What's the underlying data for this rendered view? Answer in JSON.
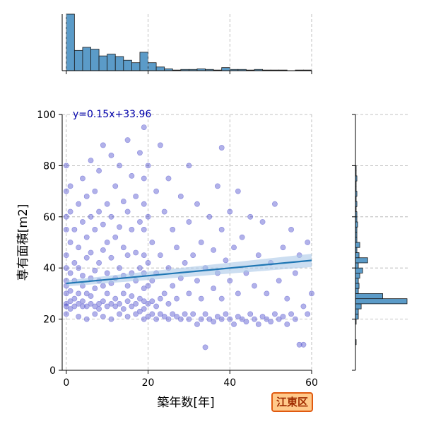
{
  "chart_data": {
    "type": "scatter",
    "title": "",
    "xlabel": "築年数[年]",
    "ylabel": "専有面積[m2]",
    "xlim": [
      -1,
      60
    ],
    "ylim": [
      0,
      100
    ],
    "x_ticks": [
      0,
      20,
      40,
      60
    ],
    "y_ticks": [
      0,
      20,
      40,
      60,
      80,
      100
    ],
    "grid": true,
    "regression": {
      "slope": 0.15,
      "intercept": 33.96,
      "label": "y=0.15x+33.96"
    },
    "points_note": "dense cloud of listings, heavy at x 0-20 and y 20-40",
    "points": [
      [
        0,
        25
      ],
      [
        0,
        22
      ],
      [
        0,
        30
      ],
      [
        0,
        35
      ],
      [
        0,
        40
      ],
      [
        0,
        45
      ],
      [
        0,
        55
      ],
      [
        0,
        60
      ],
      [
        0,
        70
      ],
      [
        0,
        80
      ],
      [
        0,
        26
      ],
      [
        0,
        33
      ],
      [
        1,
        24
      ],
      [
        1,
        27
      ],
      [
        1,
        31
      ],
      [
        1,
        38
      ],
      [
        1,
        50
      ],
      [
        1,
        62
      ],
      [
        1,
        72
      ],
      [
        2,
        25
      ],
      [
        2,
        28
      ],
      [
        2,
        35
      ],
      [
        2,
        42
      ],
      [
        2,
        55
      ],
      [
        3,
        21
      ],
      [
        3,
        26
      ],
      [
        3,
        30
      ],
      [
        3,
        40
      ],
      [
        3,
        48
      ],
      [
        3,
        65
      ],
      [
        4,
        25
      ],
      [
        4,
        27
      ],
      [
        4,
        33
      ],
      [
        4,
        37
      ],
      [
        4,
        58
      ],
      [
        4,
        75
      ],
      [
        5,
        20
      ],
      [
        5,
        25
      ],
      [
        5,
        30
      ],
      [
        5,
        44
      ],
      [
        5,
        52
      ],
      [
        5,
        68
      ],
      [
        6,
        26
      ],
      [
        6,
        29
      ],
      [
        6,
        36
      ],
      [
        6,
        46
      ],
      [
        6,
        60
      ],
      [
        6,
        82
      ],
      [
        7,
        22
      ],
      [
        7,
        25
      ],
      [
        7,
        32
      ],
      [
        7,
        39
      ],
      [
        7,
        55
      ],
      [
        7,
        70
      ],
      [
        8,
        24
      ],
      [
        8,
        26
      ],
      [
        8,
        35
      ],
      [
        8,
        42
      ],
      [
        8,
        62
      ],
      [
        8,
        78
      ],
      [
        9,
        21
      ],
      [
        9,
        27
      ],
      [
        9,
        33
      ],
      [
        9,
        47
      ],
      [
        9,
        57
      ],
      [
        9,
        88
      ],
      [
        10,
        25
      ],
      [
        10,
        30
      ],
      [
        10,
        38
      ],
      [
        10,
        50
      ],
      [
        10,
        65
      ],
      [
        11,
        20
      ],
      [
        11,
        26
      ],
      [
        11,
        34
      ],
      [
        11,
        44
      ],
      [
        11,
        60
      ],
      [
        11,
        84
      ],
      [
        12,
        25
      ],
      [
        12,
        28
      ],
      [
        12,
        36
      ],
      [
        12,
        52
      ],
      [
        12,
        72
      ],
      [
        13,
        22
      ],
      [
        13,
        26
      ],
      [
        13,
        40
      ],
      [
        13,
        56
      ],
      [
        13,
        80
      ],
      [
        14,
        24
      ],
      [
        14,
        30
      ],
      [
        14,
        37
      ],
      [
        14,
        48
      ],
      [
        14,
        66
      ],
      [
        15,
        21
      ],
      [
        15,
        27
      ],
      [
        15,
        33
      ],
      [
        15,
        45
      ],
      [
        15,
        62
      ],
      [
        15,
        90
      ],
      [
        16,
        25
      ],
      [
        16,
        29
      ],
      [
        16,
        38
      ],
      [
        16,
        55
      ],
      [
        16,
        76
      ],
      [
        17,
        22
      ],
      [
        17,
        26
      ],
      [
        17,
        35
      ],
      [
        17,
        46
      ],
      [
        17,
        68
      ],
      [
        18,
        23
      ],
      [
        18,
        28
      ],
      [
        18,
        40
      ],
      [
        18,
        58
      ],
      [
        18,
        85
      ],
      [
        19,
        20
      ],
      [
        19,
        24
      ],
      [
        19,
        27
      ],
      [
        19,
        32
      ],
      [
        19,
        38
      ],
      [
        19,
        45
      ],
      [
        19,
        55
      ],
      [
        19,
        65
      ],
      [
        19,
        75
      ],
      [
        19,
        95
      ],
      [
        20,
        21
      ],
      [
        20,
        26
      ],
      [
        20,
        33
      ],
      [
        20,
        42
      ],
      [
        20,
        60
      ],
      [
        20,
        80
      ],
      [
        21,
        22
      ],
      [
        21,
        27
      ],
      [
        21,
        35
      ],
      [
        21,
        50
      ],
      [
        22,
        20
      ],
      [
        22,
        25
      ],
      [
        22,
        38
      ],
      [
        22,
        70
      ],
      [
        23,
        22
      ],
      [
        23,
        28
      ],
      [
        23,
        45
      ],
      [
        23,
        88
      ],
      [
        24,
        21
      ],
      [
        24,
        30
      ],
      [
        24,
        62
      ],
      [
        25,
        20
      ],
      [
        25,
        26
      ],
      [
        25,
        40
      ],
      [
        25,
        75
      ],
      [
        26,
        22
      ],
      [
        26,
        33
      ],
      [
        26,
        55
      ],
      [
        27,
        21
      ],
      [
        27,
        28
      ],
      [
        27,
        48
      ],
      [
        28,
        20
      ],
      [
        28,
        36
      ],
      [
        28,
        68
      ],
      [
        29,
        22
      ],
      [
        29,
        42
      ],
      [
        30,
        20
      ],
      [
        30,
        30
      ],
      [
        30,
        58
      ],
      [
        30,
        80
      ],
      [
        31,
        22
      ],
      [
        31,
        45
      ],
      [
        32,
        18
      ],
      [
        32,
        35
      ],
      [
        32,
        65
      ],
      [
        33,
        20
      ],
      [
        33,
        28
      ],
      [
        33,
        50
      ],
      [
        34,
        9
      ],
      [
        34,
        22
      ],
      [
        34,
        40
      ],
      [
        35,
        20
      ],
      [
        35,
        60
      ],
      [
        36,
        19
      ],
      [
        36,
        32
      ],
      [
        36,
        47
      ],
      [
        37,
        21
      ],
      [
        37,
        38
      ],
      [
        37,
        72
      ],
      [
        38,
        20
      ],
      [
        38,
        28
      ],
      [
        38,
        55
      ],
      [
        38,
        87
      ],
      [
        39,
        22
      ],
      [
        39,
        43
      ],
      [
        40,
        20
      ],
      [
        40,
        35
      ],
      [
        40,
        62
      ],
      [
        41,
        18
      ],
      [
        41,
        48
      ],
      [
        42,
        21
      ],
      [
        42,
        30
      ],
      [
        42,
        70
      ],
      [
        43,
        20
      ],
      [
        43,
        52
      ],
      [
        44,
        19
      ],
      [
        44,
        38
      ],
      [
        45,
        22
      ],
      [
        45,
        60
      ],
      [
        46,
        20
      ],
      [
        46,
        33
      ],
      [
        47,
        18
      ],
      [
        47,
        45
      ],
      [
        48,
        21
      ],
      [
        48,
        58
      ],
      [
        49,
        20
      ],
      [
        49,
        30
      ],
      [
        50,
        19
      ],
      [
        50,
        42
      ],
      [
        51,
        22
      ],
      [
        51,
        65
      ],
      [
        52,
        20
      ],
      [
        52,
        35
      ],
      [
        53,
        21
      ],
      [
        53,
        48
      ],
      [
        54,
        18
      ],
      [
        54,
        28
      ],
      [
        55,
        22
      ],
      [
        55,
        55
      ],
      [
        56,
        20
      ],
      [
        56,
        38
      ],
      [
        57,
        10
      ],
      [
        57,
        45
      ],
      [
        58,
        10
      ],
      [
        58,
        25
      ],
      [
        59,
        22
      ],
      [
        59,
        50
      ],
      [
        60,
        30
      ]
    ],
    "x_hist_counts": [
      92,
      33,
      38,
      35,
      24,
      27,
      23,
      17,
      13,
      30,
      13,
      6,
      3,
      1,
      2,
      2,
      3,
      2,
      1,
      5,
      2,
      2,
      1,
      2,
      1,
      1,
      1,
      0,
      1,
      1
    ],
    "y_hist": {
      "bins": [
        10,
        12,
        14,
        16,
        18,
        20,
        22,
        24,
        26,
        28,
        30,
        32,
        34,
        36,
        38,
        40,
        42,
        44,
        46,
        48,
        50,
        52,
        54,
        56,
        58,
        60,
        62,
        64,
        66,
        68,
        70,
        72,
        74,
        76,
        78,
        80
      ],
      "counts": [
        1,
        0,
        0,
        0,
        1,
        4,
        4,
        8,
        72,
        38,
        4,
        5,
        4,
        6,
        10,
        4,
        17,
        5,
        2,
        6,
        2,
        2,
        2,
        3,
        2,
        2,
        1,
        2,
        1,
        2,
        1,
        1,
        2,
        1,
        1,
        1
      ]
    }
  },
  "badge": {
    "label": "江東区",
    "fill": "#ffc98a",
    "border": "#e05a10",
    "text_color": "#a02c00"
  },
  "colors": {
    "points": "#2020c0",
    "regression": "#1f77b4",
    "ci_band": "#aac8e8",
    "bars": "#5b9bc8"
  }
}
